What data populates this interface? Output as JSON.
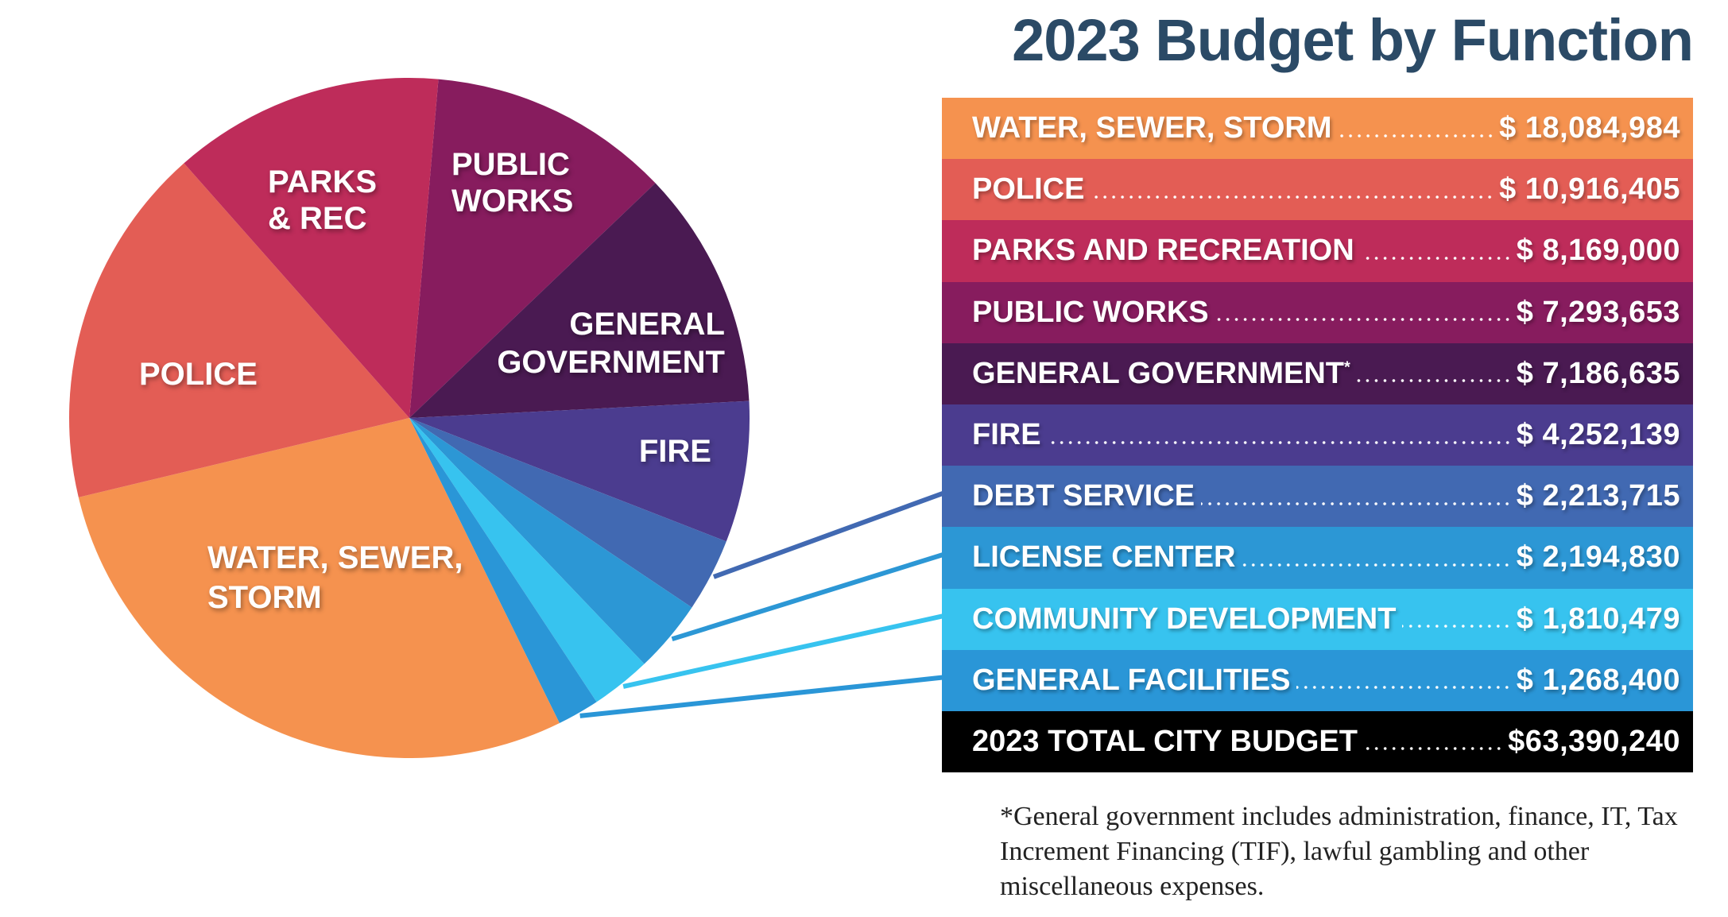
{
  "chart_data": {
    "type": "pie",
    "title": "2023 Budget by Function",
    "slices": [
      {
        "key": "public_works",
        "label_lines": [
          "PUBLIC",
          "WORKS"
        ],
        "name": "PUBLIC WORKS",
        "value": 7293653,
        "amount": "$ 7,293,653",
        "color": "#871C5E"
      },
      {
        "key": "general_government",
        "label_lines": [
          "GENERAL",
          "GOVERNMENT"
        ],
        "name": "GENERAL GOVERNMENT",
        "asterisk": "*",
        "value": 7186635,
        "amount": "$ 7,186,635",
        "color": "#4A1A52"
      },
      {
        "key": "fire",
        "label_lines": [
          "FIRE"
        ],
        "name": "FIRE",
        "value": 4252139,
        "amount": "$ 4,252,139",
        "color": "#4B3C8F"
      },
      {
        "key": "debt_service",
        "label_lines": [],
        "name": "DEBT SERVICE",
        "value": 2213715,
        "amount": "$ 2,213,715",
        "color": "#4169B2"
      },
      {
        "key": "license_center",
        "label_lines": [],
        "name": "LICENSE CENTER",
        "value": 2194830,
        "amount": "$ 2,194,830",
        "color": "#2C97D5"
      },
      {
        "key": "community_development",
        "label_lines": [],
        "name": "COMMUNITY DEVELOPMENT",
        "value": 1810479,
        "amount": "$ 1,810,479",
        "color": "#37C3EF"
      },
      {
        "key": "general_facilities",
        "label_lines": [],
        "name": "GENERAL FACILITIES",
        "value": 1268400,
        "amount": "$ 1,268,400",
        "color": "#2A96D7"
      },
      {
        "key": "water_sewer_storm",
        "label_lines": [
          "WATER, SEWER,",
          "STORM"
        ],
        "name": "WATER, SEWER, STORM",
        "value": 18084984,
        "amount": "$ 18,084,984",
        "color": "#F5924F"
      },
      {
        "key": "police",
        "label_lines": [
          "POLICE"
        ],
        "name": "POLICE",
        "value": 10916405,
        "amount": "$ 10,916,405",
        "color": "#E35D55"
      },
      {
        "key": "parks_rec",
        "label_lines": [
          "PARKS",
          "& REC"
        ],
        "name": "PARKS AND RECREATION",
        "value": 8169000,
        "amount": "$ 8,169,000",
        "color": "#BE2C5A"
      }
    ],
    "table_order": [
      "water_sewer_storm",
      "police",
      "parks_rec",
      "public_works",
      "general_government",
      "fire",
      "debt_service",
      "license_center",
      "community_development",
      "general_facilities"
    ],
    "total": {
      "label": "2023 TOTAL CITY BUDGET",
      "value": 63390240,
      "amount": "$63,390,240",
      "color": "#000000"
    }
  },
  "footnote": "*General government includes administration, finance, IT, Tax Increment Financing (TIF), lawful gambling and other miscellaneous expenses."
}
